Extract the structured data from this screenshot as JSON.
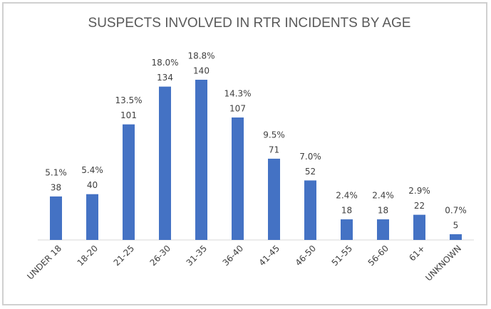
{
  "chart_data": {
    "type": "bar",
    "title": "SUSPECTS INVOLVED IN RTR INCIDENTS BY AGE",
    "categories": [
      "UNDER 18",
      "18-20",
      "21-25",
      "26-30",
      "31-35",
      "36-40",
      "41-45",
      "46-50",
      "51-55",
      "56-60",
      "61+",
      "UNKNOWN"
    ],
    "values": [
      38,
      40,
      101,
      134,
      140,
      107,
      71,
      52,
      18,
      18,
      22,
      5
    ],
    "percent_labels": [
      "5.1%",
      "5.4%",
      "13.5%",
      "18.0%",
      "18.8%",
      "14.3%",
      "9.5%",
      "7.0%",
      "2.4%",
      "2.4%",
      "2.9%",
      "0.7%"
    ],
    "color": "#4472c4"
  }
}
